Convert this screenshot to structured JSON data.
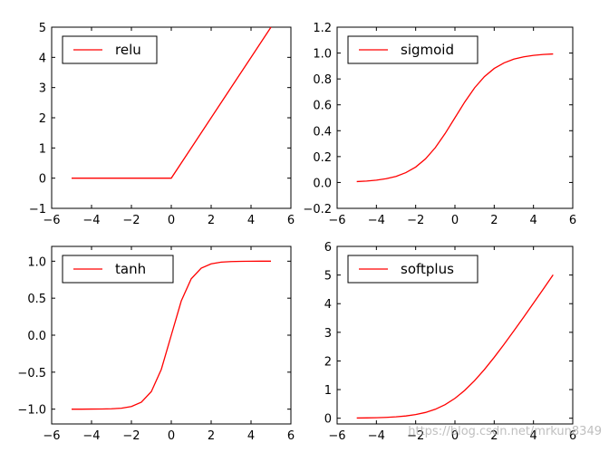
{
  "chart_data": [
    {
      "type": "line",
      "title": "",
      "xlabel": "",
      "ylabel": "",
      "xlim": [
        -6,
        6
      ],
      "ylim": [
        -1,
        5
      ],
      "xticks": [
        -6,
        -4,
        -2,
        0,
        2,
        4,
        6
      ],
      "yticks": [
        -1,
        0,
        1,
        2,
        3,
        4,
        5
      ],
      "xtick_labels": [
        "−6",
        "−4",
        "−2",
        "0",
        "2",
        "4",
        "6"
      ],
      "ytick_labels": [
        "−1",
        "0",
        "1",
        "2",
        "3",
        "4",
        "5"
      ],
      "legend_position": "top-left",
      "grid": false,
      "series": [
        {
          "name": "relu",
          "color": "#ff0000",
          "x": [
            -5,
            -4,
            -3,
            -2,
            -1,
            0,
            1,
            2,
            3,
            4,
            5
          ],
          "y": [
            0,
            0,
            0,
            0,
            0,
            0,
            1,
            2,
            3,
            4,
            5
          ]
        }
      ]
    },
    {
      "type": "line",
      "title": "",
      "xlabel": "",
      "ylabel": "",
      "xlim": [
        -6,
        6
      ],
      "ylim": [
        -0.2,
        1.2
      ],
      "xticks": [
        -6,
        -4,
        -2,
        0,
        2,
        4,
        6
      ],
      "yticks": [
        -0.2,
        0.0,
        0.2,
        0.4,
        0.6,
        0.8,
        1.0,
        1.2
      ],
      "xtick_labels": [
        "−6",
        "−4",
        "−2",
        "0",
        "2",
        "4",
        "6"
      ],
      "ytick_labels": [
        "−0.2",
        "0.0",
        "0.2",
        "0.4",
        "0.6",
        "0.8",
        "1.0",
        "1.2"
      ],
      "legend_position": "top-left",
      "grid": false,
      "series": [
        {
          "name": "sigmoid",
          "color": "#ff0000",
          "x": [
            -5,
            -4.5,
            -4,
            -3.5,
            -3,
            -2.5,
            -2,
            -1.5,
            -1,
            -0.5,
            0,
            0.5,
            1,
            1.5,
            2,
            2.5,
            3,
            3.5,
            4,
            4.5,
            5
          ],
          "y": [
            0.007,
            0.011,
            0.018,
            0.029,
            0.047,
            0.076,
            0.119,
            0.182,
            0.269,
            0.378,
            0.5,
            0.622,
            0.731,
            0.818,
            0.881,
            0.924,
            0.953,
            0.971,
            0.982,
            0.989,
            0.993
          ]
        }
      ]
    },
    {
      "type": "line",
      "title": "",
      "xlabel": "",
      "ylabel": "",
      "xlim": [
        -6,
        6
      ],
      "ylim": [
        -1.2,
        1.2
      ],
      "xticks": [
        -6,
        -4,
        -2,
        0,
        2,
        4,
        6
      ],
      "yticks": [
        -1.0,
        -0.5,
        0.0,
        0.5,
        1.0
      ],
      "xtick_labels": [
        "−6",
        "−4",
        "−2",
        "0",
        "2",
        "4",
        "6"
      ],
      "ytick_labels": [
        "−1.0",
        "−0.5",
        "0.0",
        "0.5",
        "1.0"
      ],
      "legend_position": "top-left",
      "grid": false,
      "series": [
        {
          "name": "tanh",
          "color": "#ff0000",
          "x": [
            -5,
            -4.5,
            -4,
            -3.5,
            -3,
            -2.5,
            -2,
            -1.5,
            -1,
            -0.5,
            0,
            0.5,
            1,
            1.5,
            2,
            2.5,
            3,
            3.5,
            4,
            4.5,
            5
          ],
          "y": [
            -1.0,
            -1.0,
            -0.999,
            -0.998,
            -0.995,
            -0.987,
            -0.964,
            -0.905,
            -0.762,
            -0.462,
            0.0,
            0.462,
            0.762,
            0.905,
            0.964,
            0.987,
            0.995,
            0.998,
            0.999,
            1.0,
            1.0
          ]
        }
      ]
    },
    {
      "type": "line",
      "title": "",
      "xlabel": "",
      "ylabel": "",
      "xlim": [
        -6,
        6
      ],
      "ylim": [
        -0.2,
        6
      ],
      "xticks": [
        -6,
        -4,
        -2,
        0,
        2,
        4,
        6
      ],
      "yticks": [
        0,
        1,
        2,
        3,
        4,
        5,
        6
      ],
      "xtick_labels": [
        "−6",
        "−4",
        "−2",
        "0",
        "2",
        "4",
        "6"
      ],
      "ytick_labels": [
        "0",
        "1",
        "2",
        "3",
        "4",
        "5",
        "6"
      ],
      "legend_position": "top-left",
      "grid": false,
      "series": [
        {
          "name": "softplus",
          "color": "#ff0000",
          "x": [
            -5,
            -4.5,
            -4,
            -3.5,
            -3,
            -2.5,
            -2,
            -1.5,
            -1,
            -0.5,
            0,
            0.5,
            1,
            1.5,
            2,
            2.5,
            3,
            3.5,
            4,
            4.5,
            5
          ],
          "y": [
            0.007,
            0.011,
            0.018,
            0.03,
            0.049,
            0.079,
            0.127,
            0.201,
            0.313,
            0.474,
            0.693,
            0.974,
            1.313,
            1.701,
            2.127,
            2.579,
            3.049,
            3.53,
            4.018,
            4.511,
            5.007
          ]
        }
      ]
    }
  ],
  "watermark": "https://blog.csdn.net/mrkun8349"
}
